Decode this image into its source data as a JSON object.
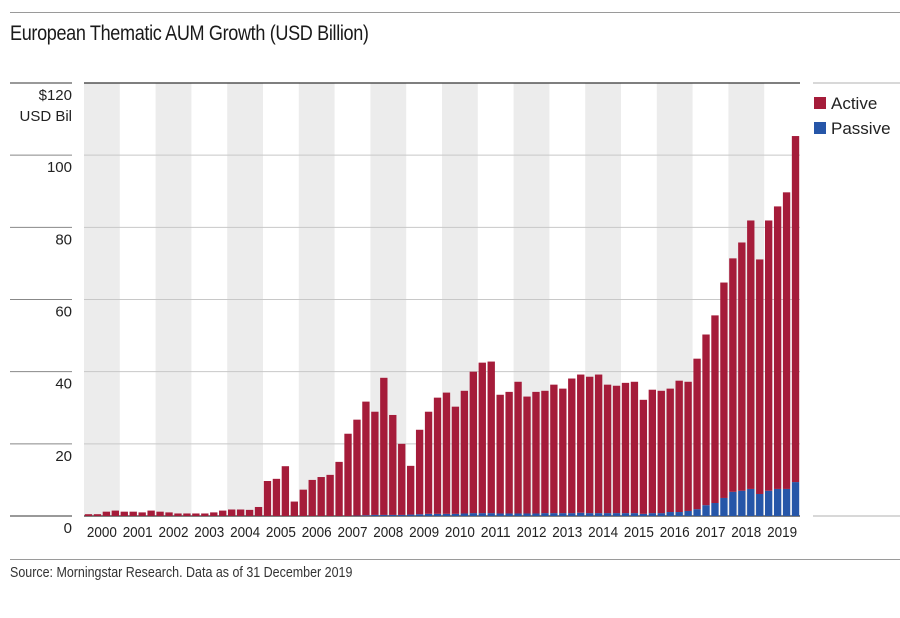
{
  "header": {
    "title": "European Thematic AUM Growth (USD Billion)"
  },
  "footer": {
    "source": "Source: Morningstar Research. Data as of 31 December 2019"
  },
  "chart_data": {
    "type": "bar",
    "stacked": true,
    "title": "European Thematic AUM Growth (USD Billion)",
    "xlabel": "",
    "ylabel": "USD Bil",
    "y_top_label": "$120",
    "ylim": [
      0,
      120
    ],
    "yticks": [
      0,
      20,
      40,
      60,
      80,
      100,
      120
    ],
    "ytick_labels": [
      "0",
      "20",
      "40",
      "60",
      "80",
      "100",
      "$120"
    ],
    "grid": true,
    "legend_position": "right",
    "year_labels": [
      "2000",
      "2001",
      "2002",
      "2003",
      "2004",
      "2005",
      "2006",
      "2007",
      "2008",
      "2009",
      "2010",
      "2011",
      "2012",
      "2013",
      "2014",
      "2015",
      "2016",
      "2017",
      "2018",
      "2019"
    ],
    "periods_per_year": 4,
    "categories": [
      "2000Q1",
      "2000Q2",
      "2000Q3",
      "2000Q4",
      "2001Q1",
      "2001Q2",
      "2001Q3",
      "2001Q4",
      "2002Q1",
      "2002Q2",
      "2002Q3",
      "2002Q4",
      "2003Q1",
      "2003Q2",
      "2003Q3",
      "2003Q4",
      "2004Q1",
      "2004Q2",
      "2004Q3",
      "2004Q4",
      "2005Q1",
      "2005Q2",
      "2005Q3",
      "2005Q4",
      "2006Q1",
      "2006Q2",
      "2006Q3",
      "2006Q4",
      "2007Q1",
      "2007Q2",
      "2007Q3",
      "2007Q4",
      "2008Q1",
      "2008Q2",
      "2008Q3",
      "2008Q4",
      "2009Q1",
      "2009Q2",
      "2009Q3",
      "2009Q4",
      "2010Q1",
      "2010Q2",
      "2010Q3",
      "2010Q4",
      "2011Q1",
      "2011Q2",
      "2011Q3",
      "2011Q4",
      "2012Q1",
      "2012Q2",
      "2012Q3",
      "2012Q4",
      "2013Q1",
      "2013Q2",
      "2013Q3",
      "2013Q4",
      "2014Q1",
      "2014Q2",
      "2014Q3",
      "2014Q4",
      "2015Q1",
      "2015Q2",
      "2015Q3",
      "2015Q4",
      "2016Q1",
      "2016Q2",
      "2016Q3",
      "2016Q4",
      "2017Q1",
      "2017Q2",
      "2017Q3",
      "2017Q4",
      "2018Q1",
      "2018Q2",
      "2018Q3",
      "2018Q4",
      "2019Q1",
      "2019Q2",
      "2019Q3",
      "2019Q4"
    ],
    "series": [
      {
        "name": "Active",
        "color": "#A51C3A",
        "values": [
          0.5,
          0.5,
          1.2,
          1.5,
          1.2,
          1.2,
          1.0,
          1.5,
          1.2,
          1.0,
          0.7,
          0.7,
          0.7,
          0.7,
          1.0,
          1.5,
          1.8,
          1.8,
          1.7,
          2.5,
          9.7,
          10.3,
          13.8,
          4.0,
          7.3,
          10.0,
          10.8,
          11.4,
          15.0,
          22.8,
          26.6,
          31.5,
          28.6,
          38.0,
          27.7,
          19.7,
          13.5,
          23.4,
          28.3,
          32.2,
          33.6,
          29.7,
          34.0,
          39.2,
          41.7,
          42.0,
          32.9,
          33.7,
          36.5,
          32.4,
          33.7,
          33.9,
          35.6,
          34.5,
          37.3,
          38.3,
          37.8,
          38.4,
          35.6,
          35.3,
          36.1,
          36.4,
          31.6,
          34.2,
          33.9,
          34.2,
          36.4,
          35.8,
          41.7,
          47.3,
          52.0,
          59.7,
          64.7,
          68.8,
          74.4,
          65.0,
          74.9,
          78.3,
          82.2,
          95.9
        ]
      },
      {
        "name": "Passive",
        "color": "#2656A8",
        "values": [
          0,
          0,
          0,
          0,
          0,
          0,
          0,
          0,
          0,
          0,
          0,
          0,
          0,
          0,
          0,
          0,
          0,
          0,
          0,
          0,
          0,
          0,
          0,
          0,
          0,
          0,
          0,
          0,
          0,
          0,
          0.1,
          0.2,
          0.3,
          0.3,
          0.3,
          0.3,
          0.4,
          0.5,
          0.6,
          0.6,
          0.6,
          0.6,
          0.7,
          0.8,
          0.8,
          0.8,
          0.7,
          0.7,
          0.7,
          0.7,
          0.7,
          0.8,
          0.8,
          0.8,
          0.8,
          0.9,
          0.8,
          0.8,
          0.8,
          0.8,
          0.8,
          0.8,
          0.6,
          0.8,
          0.8,
          1.1,
          1.1,
          1.4,
          1.9,
          3.0,
          3.6,
          5.0,
          6.7,
          7.0,
          7.5,
          6.1,
          7.0,
          7.5,
          7.5,
          9.4
        ]
      }
    ]
  }
}
